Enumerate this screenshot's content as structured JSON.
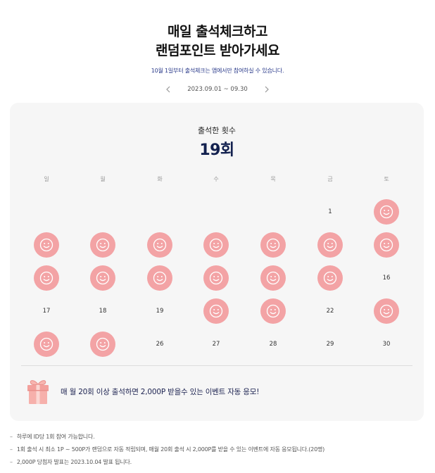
{
  "header": {
    "title_line1": "매일 출석체크하고",
    "title_line2": "랜덤포인트 받아가세요",
    "subtitle": "10월 1일부터 출석체크는 앱에서만 참여하실 수 있습니다.",
    "period": "2023.09.01 ~ 09.30",
    "prev_icon": "chevron-left-icon",
    "next_icon": "chevron-right-icon"
  },
  "attendance": {
    "label": "출석한 횟수",
    "count": "19회"
  },
  "calendar": {
    "weekdays": [
      "일",
      "월",
      "화",
      "수",
      "목",
      "금",
      "토"
    ],
    "weeks": [
      [
        null,
        null,
        null,
        null,
        null,
        "1",
        "stamp"
      ],
      [
        "stamp",
        "stamp",
        "stamp",
        "stamp",
        "stamp",
        "stamp",
        "stamp"
      ],
      [
        "stamp",
        "stamp",
        "stamp",
        "stamp",
        "stamp",
        "stamp",
        "16"
      ],
      [
        "17",
        "18",
        "19",
        "stamp",
        "stamp",
        "22",
        "stamp"
      ],
      [
        "stamp",
        "stamp",
        "26",
        "27",
        "28",
        "29",
        "30"
      ]
    ],
    "stamp_icon": "smiley-icon",
    "stamp_color": "#f3a3a5"
  },
  "event": {
    "icon": "gift-icon",
    "text": "매 월 20회 이상 출석하면 2,000P 받을수 있는 이벤트 자동 응모!"
  },
  "notes": [
    "하루에 ID당 1회 참여 가능합니다.",
    "1회 출석 시 최소 1P ~ 500P가 랜덤으로 자동 적립되며, 매월 20회 출석 시 2,000P를 받을 수 있는 이벤트에 자동 응모됩니다.(20명)",
    "2,000P 당첨자 발표는 2023.10.04 발표 됩니다."
  ],
  "colors": {
    "accent_navy": "#13214f",
    "stamp_pink": "#f3a3a5",
    "card_bg": "#f6f6f6"
  }
}
